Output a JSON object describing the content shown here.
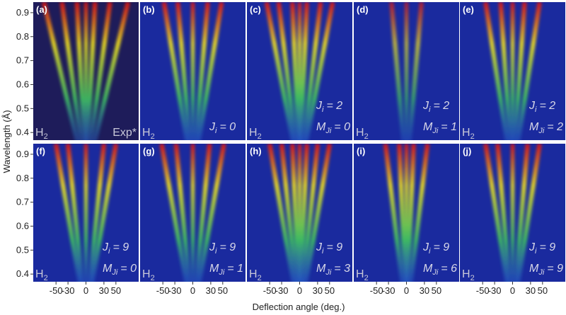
{
  "figure": {
    "ylabel": "Wavelength (Å)",
    "xlabel": "Deflection angle (deg.)",
    "ylim": [
      0.368,
      0.944
    ],
    "yticks": [
      0.4,
      0.5,
      0.6,
      0.7,
      0.8,
      0.9
    ],
    "xlim": [
      -88,
      88
    ],
    "xticks": [
      -50,
      -30,
      0,
      30,
      50
    ],
    "panels": [
      {
        "label": "(a)",
        "molecule": [
          "H",
          "2"
        ],
        "note": "Exp*"
      },
      {
        "label": "(b)",
        "molecule": [
          "H",
          "2"
        ],
        "lines": [
          [
            "J",
            "i",
            "= 0"
          ]
        ]
      },
      {
        "label": "(c)",
        "molecule": [
          "H",
          "2"
        ],
        "lines": [
          [
            "J",
            "i",
            "= 2"
          ],
          [
            "M",
            "Ji",
            "= 0"
          ]
        ]
      },
      {
        "label": "(d)",
        "molecule": [
          "H",
          "2"
        ],
        "lines": [
          [
            "J",
            "i",
            "= 2"
          ],
          [
            "M",
            "Ji",
            "= 1"
          ]
        ]
      },
      {
        "label": "(e)",
        "molecule": [
          "H",
          "2"
        ],
        "lines": [
          [
            "J",
            "i",
            "= 2"
          ],
          [
            "M",
            "Ji",
            "= 2"
          ]
        ]
      },
      {
        "label": "(f)",
        "molecule": [
          "H",
          "2"
        ],
        "lines": [
          [
            "J",
            "i",
            "= 9"
          ],
          [
            "M",
            "Ji",
            "= 0"
          ]
        ]
      },
      {
        "label": "(g)",
        "molecule": [
          "H",
          "2"
        ],
        "lines": [
          [
            "J",
            "i",
            "= 9"
          ],
          [
            "M",
            "Ji",
            "= 1"
          ]
        ]
      },
      {
        "label": "(h)",
        "molecule": [
          "H",
          "2"
        ],
        "lines": [
          [
            "J",
            "i",
            "= 9"
          ],
          [
            "M",
            "Ji",
            "= 3"
          ]
        ]
      },
      {
        "label": "(i)",
        "molecule": [
          "H",
          "2"
        ],
        "lines": [
          [
            "J",
            "i",
            "= 9"
          ],
          [
            "M",
            "Ji",
            "= 6"
          ]
        ]
      },
      {
        "label": "(j)",
        "molecule": [
          "H",
          "2"
        ],
        "lines": [
          [
            "J",
            "i",
            "= 9"
          ],
          [
            "M",
            "Ji",
            "= 9"
          ]
        ]
      }
    ]
  }
}
